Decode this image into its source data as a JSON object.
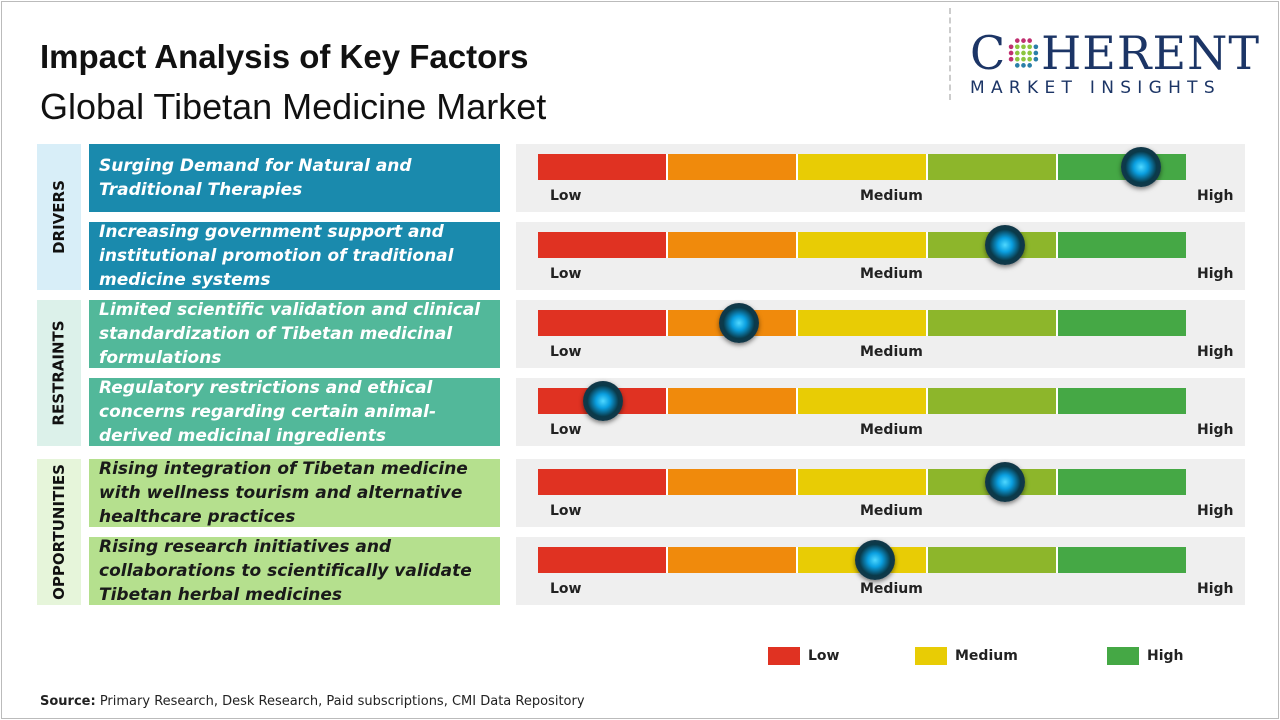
{
  "title": "Impact Analysis of Key Factors",
  "subtitle": "Global Tibetan Medicine Market",
  "logo": {
    "main_pre": "C",
    "main_post": "HERENT",
    "tagline": "MARKET INSIGHTS"
  },
  "scale": {
    "low": "Low",
    "medium": "Medium",
    "high": "High"
  },
  "segment_colors": [
    "#e03222",
    "#f08a0c",
    "#e8cc05",
    "#8db62b",
    "#45a845"
  ],
  "categories": [
    {
      "name": "DRIVERS",
      "color": "#1a8aad",
      "bg": "#d8eef8",
      "text_color": "#ffffff",
      "factors": [
        {
          "label": "Surging Demand for Natural and Traditional Therapies",
          "impact": 0.93
        },
        {
          "label": "Increasing government support and institutional promotion of traditional medicine systems",
          "impact": 0.72
        }
      ]
    },
    {
      "name": "RESTRAINTS",
      "color": "#52b89a",
      "bg": "#dcf1ea",
      "text_color": "#ffffff",
      "factors": [
        {
          "label": "Limited scientific validation and clinical standardization of Tibetan medicinal formulations",
          "impact": 0.31
        },
        {
          "label": "Regulatory restrictions and ethical concerns regarding certain animal-derived medicinal ingredients",
          "impact": 0.1
        }
      ]
    },
    {
      "name": "OPPORTUNITIES",
      "color": "#b5e08e",
      "bg": "#e6f5da",
      "text_color": "#1a1a1a",
      "factors": [
        {
          "label": "Rising integration of Tibetan medicine with wellness tourism and alternative healthcare practices",
          "impact": 0.72
        },
        {
          "label": "Rising research initiatives and collaborations to scientifically validate Tibetan herbal medicines",
          "impact": 0.52
        }
      ]
    }
  ],
  "legend": [
    {
      "label": "Low",
      "color": "#e03222"
    },
    {
      "label": "Medium",
      "color": "#e8cc05"
    },
    {
      "label": "High",
      "color": "#45a845"
    }
  ],
  "source": {
    "label": "Source:",
    "text": " Primary Research, Desk Research, Paid subscriptions, CMI Data Repository"
  }
}
